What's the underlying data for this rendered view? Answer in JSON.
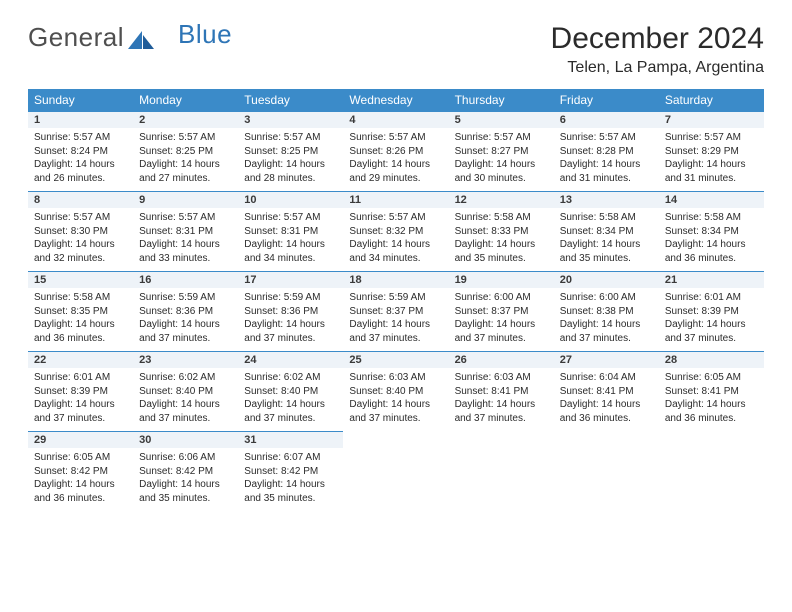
{
  "logo": {
    "text1": "General",
    "text2": "Blue"
  },
  "title": "December 2024",
  "location": "Telen, La Pampa, Argentina",
  "colors": {
    "header_bg": "#3b8bc9",
    "header_text": "#ffffff",
    "daynum_bg": "#eef3f8",
    "daynum_border": "#3b8bc9",
    "logo_gray": "#4f4f4f",
    "logo_blue": "#2e75b6",
    "page_bg": "#ffffff",
    "body_text": "#2b2b2b"
  },
  "typography": {
    "title_fontsize": 30,
    "location_fontsize": 16,
    "dayhead_fontsize": 12,
    "daynum_fontsize": 11,
    "dayinfo_fontsize": 10
  },
  "weekdays": [
    "Sunday",
    "Monday",
    "Tuesday",
    "Wednesday",
    "Thursday",
    "Friday",
    "Saturday"
  ],
  "weeks": [
    [
      {
        "n": "1",
        "rise": "5:57 AM",
        "set": "8:24 PM",
        "dl": "14 hours and 26 minutes."
      },
      {
        "n": "2",
        "rise": "5:57 AM",
        "set": "8:25 PM",
        "dl": "14 hours and 27 minutes."
      },
      {
        "n": "3",
        "rise": "5:57 AM",
        "set": "8:25 PM",
        "dl": "14 hours and 28 minutes."
      },
      {
        "n": "4",
        "rise": "5:57 AM",
        "set": "8:26 PM",
        "dl": "14 hours and 29 minutes."
      },
      {
        "n": "5",
        "rise": "5:57 AM",
        "set": "8:27 PM",
        "dl": "14 hours and 30 minutes."
      },
      {
        "n": "6",
        "rise": "5:57 AM",
        "set": "8:28 PM",
        "dl": "14 hours and 31 minutes."
      },
      {
        "n": "7",
        "rise": "5:57 AM",
        "set": "8:29 PM",
        "dl": "14 hours and 31 minutes."
      }
    ],
    [
      {
        "n": "8",
        "rise": "5:57 AM",
        "set": "8:30 PM",
        "dl": "14 hours and 32 minutes."
      },
      {
        "n": "9",
        "rise": "5:57 AM",
        "set": "8:31 PM",
        "dl": "14 hours and 33 minutes."
      },
      {
        "n": "10",
        "rise": "5:57 AM",
        "set": "8:31 PM",
        "dl": "14 hours and 34 minutes."
      },
      {
        "n": "11",
        "rise": "5:57 AM",
        "set": "8:32 PM",
        "dl": "14 hours and 34 minutes."
      },
      {
        "n": "12",
        "rise": "5:58 AM",
        "set": "8:33 PM",
        "dl": "14 hours and 35 minutes."
      },
      {
        "n": "13",
        "rise": "5:58 AM",
        "set": "8:34 PM",
        "dl": "14 hours and 35 minutes."
      },
      {
        "n": "14",
        "rise": "5:58 AM",
        "set": "8:34 PM",
        "dl": "14 hours and 36 minutes."
      }
    ],
    [
      {
        "n": "15",
        "rise": "5:58 AM",
        "set": "8:35 PM",
        "dl": "14 hours and 36 minutes."
      },
      {
        "n": "16",
        "rise": "5:59 AM",
        "set": "8:36 PM",
        "dl": "14 hours and 37 minutes."
      },
      {
        "n": "17",
        "rise": "5:59 AM",
        "set": "8:36 PM",
        "dl": "14 hours and 37 minutes."
      },
      {
        "n": "18",
        "rise": "5:59 AM",
        "set": "8:37 PM",
        "dl": "14 hours and 37 minutes."
      },
      {
        "n": "19",
        "rise": "6:00 AM",
        "set": "8:37 PM",
        "dl": "14 hours and 37 minutes."
      },
      {
        "n": "20",
        "rise": "6:00 AM",
        "set": "8:38 PM",
        "dl": "14 hours and 37 minutes."
      },
      {
        "n": "21",
        "rise": "6:01 AM",
        "set": "8:39 PM",
        "dl": "14 hours and 37 minutes."
      }
    ],
    [
      {
        "n": "22",
        "rise": "6:01 AM",
        "set": "8:39 PM",
        "dl": "14 hours and 37 minutes."
      },
      {
        "n": "23",
        "rise": "6:02 AM",
        "set": "8:40 PM",
        "dl": "14 hours and 37 minutes."
      },
      {
        "n": "24",
        "rise": "6:02 AM",
        "set": "8:40 PM",
        "dl": "14 hours and 37 minutes."
      },
      {
        "n": "25",
        "rise": "6:03 AM",
        "set": "8:40 PM",
        "dl": "14 hours and 37 minutes."
      },
      {
        "n": "26",
        "rise": "6:03 AM",
        "set": "8:41 PM",
        "dl": "14 hours and 37 minutes."
      },
      {
        "n": "27",
        "rise": "6:04 AM",
        "set": "8:41 PM",
        "dl": "14 hours and 36 minutes."
      },
      {
        "n": "28",
        "rise": "6:05 AM",
        "set": "8:41 PM",
        "dl": "14 hours and 36 minutes."
      }
    ],
    [
      {
        "n": "29",
        "rise": "6:05 AM",
        "set": "8:42 PM",
        "dl": "14 hours and 36 minutes."
      },
      {
        "n": "30",
        "rise": "6:06 AM",
        "set": "8:42 PM",
        "dl": "14 hours and 35 minutes."
      },
      {
        "n": "31",
        "rise": "6:07 AM",
        "set": "8:42 PM",
        "dl": "14 hours and 35 minutes."
      },
      null,
      null,
      null,
      null
    ]
  ],
  "labels": {
    "sunrise": "Sunrise: ",
    "sunset": "Sunset: ",
    "daylight": "Daylight: "
  }
}
